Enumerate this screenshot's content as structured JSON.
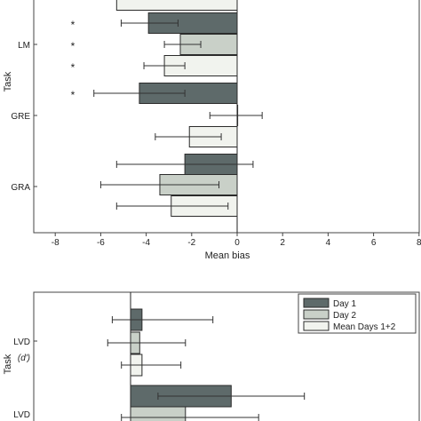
{
  "colors": {
    "day1": "#5e6a6a",
    "day2": "#c9d0c8",
    "mean": "#f1f3ee",
    "stroke": "#2b2b2b",
    "error": "#333333"
  },
  "chart_data": [
    {
      "type": "bar",
      "orientation": "horizontal",
      "xlabel": "Mean bias",
      "ylabel": "Task",
      "xlim": [
        -9,
        8
      ],
      "xticks": [
        -8,
        -6,
        -4,
        -2,
        0,
        2,
        4,
        6,
        8
      ],
      "xtick_labels": [
        "-8",
        "-6",
        "-4",
        "-2",
        "0",
        "2",
        "4",
        "6",
        "8"
      ],
      "grid": false,
      "bars": [
        {
          "group": "",
          "series": "Mean Days 1+2",
          "value": -5.3,
          "err_lo": -5.3,
          "err_hi": -5.3,
          "star": ""
        },
        {
          "group": "LM",
          "series": "Day 1",
          "value": -3.9,
          "err_lo": -5.1,
          "err_hi": -2.6,
          "star": "*"
        },
        {
          "group": "LM",
          "series": "Day 2",
          "value": -2.5,
          "err_lo": -3.2,
          "err_hi": -1.6,
          "star": "*"
        },
        {
          "group": "LM",
          "series": "Mean Days 1+2",
          "value": -3.2,
          "err_lo": -4.1,
          "err_hi": -2.3,
          "star": "*"
        },
        {
          "group": "LM",
          "series": "Day 1",
          "value": -4.3,
          "err_lo": -6.3,
          "err_hi": -2.3,
          "star": "*"
        },
        {
          "group": "GRE",
          "series": "Day 2",
          "value": 0.0,
          "err_lo": -1.2,
          "err_hi": 1.1,
          "star": ""
        },
        {
          "group": "GRE",
          "series": "Mean Days 1+2",
          "value": -2.1,
          "err_lo": -3.6,
          "err_hi": -0.7,
          "star": ""
        },
        {
          "group": "GRA",
          "series": "Day 1",
          "value": -2.3,
          "err_lo": -5.3,
          "err_hi": 0.7,
          "star": ""
        },
        {
          "group": "GRA",
          "series": "Day 2",
          "value": -3.4,
          "err_lo": -6.0,
          "err_hi": -0.8,
          "star": ""
        },
        {
          "group": "GRA",
          "series": "Mean Days 1+2",
          "value": -2.9,
          "err_lo": -5.3,
          "err_hi": -0.4,
          "star": ""
        }
      ],
      "category_labels": [
        "LM",
        "GRE",
        "GRA"
      ]
    },
    {
      "type": "bar",
      "orientation": "horizontal",
      "ylabel": "Task",
      "xlim": [
        -0.5,
        4
      ],
      "legend": {
        "placement": "top-right",
        "entries": [
          "Day 1",
          "Day 2",
          "Mean Days 1+2"
        ]
      },
      "bars": [
        {
          "group": "LVD (d')",
          "series": "Day 1",
          "value": 0.25,
          "err_lo": -0.4,
          "err_hi": 1.8
        },
        {
          "group": "LVD (d')",
          "series": "Day 2",
          "value": 0.2,
          "err_lo": -0.5,
          "err_hi": 1.2
        },
        {
          "group": "LVD (d')",
          "series": "Mean Days 1+2",
          "value": 0.25,
          "err_lo": -0.2,
          "err_hi": 1.1
        },
        {
          "group": "LVD",
          "series": "Day 1",
          "value": 2.2,
          "err_lo": 0.6,
          "err_hi": 3.8
        },
        {
          "group": "LVD",
          "series": "Day 2",
          "value": 1.2,
          "err_lo": -0.2,
          "err_hi": 2.8
        }
      ],
      "category_labels": [
        "LVD",
        "(d')",
        "LVD"
      ]
    }
  ]
}
